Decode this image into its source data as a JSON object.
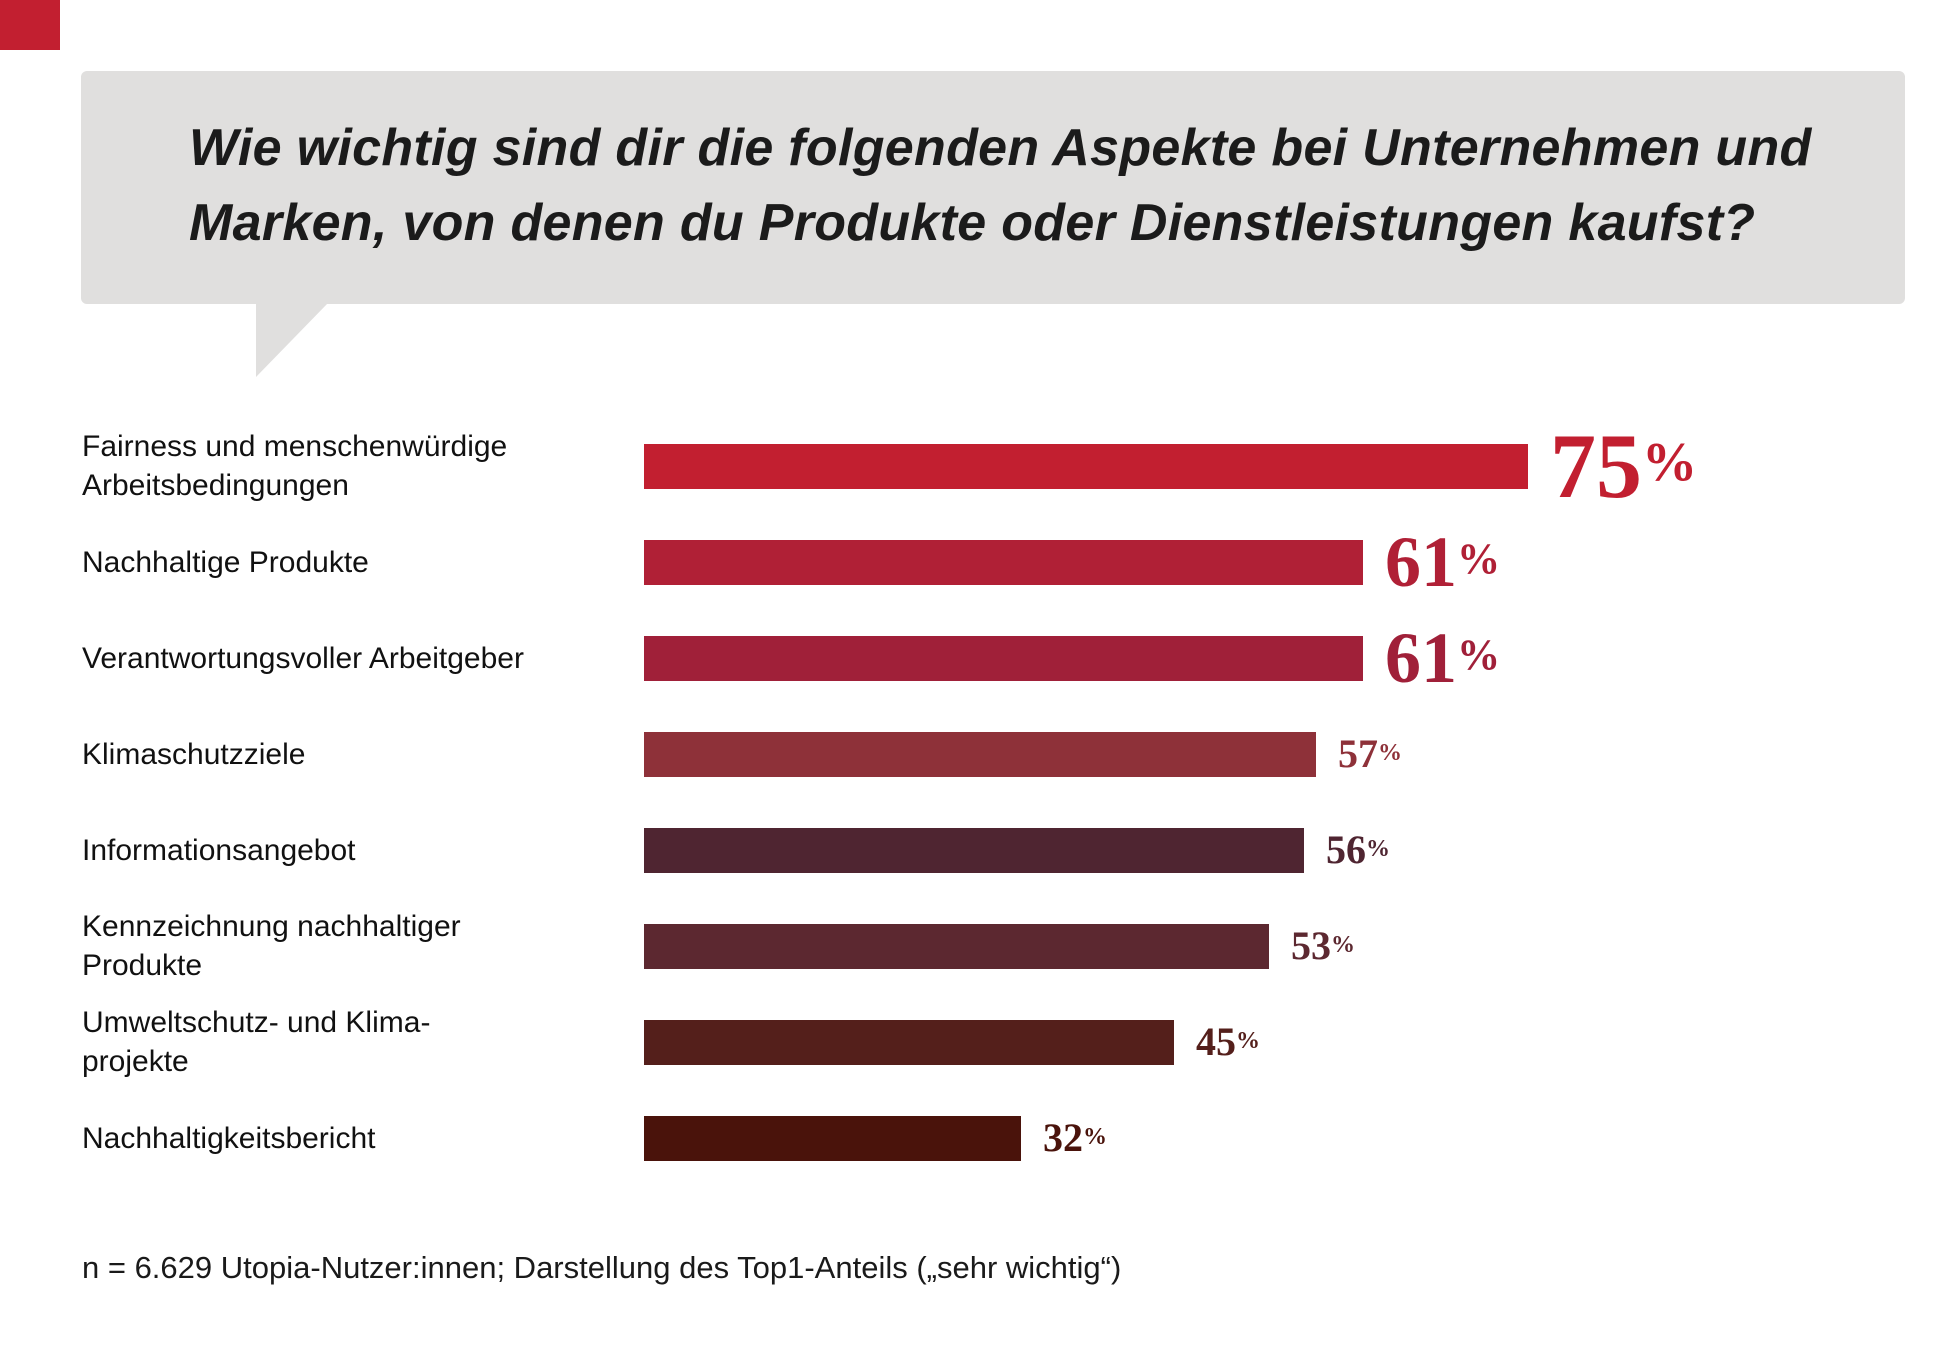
{
  "page": {
    "accent_color": "#c21f30",
    "background": "#ffffff"
  },
  "title": {
    "text": "Wie wichtig sind dir die folgenden Aspekte bei Unternehmen und\nMarken, von denen du Produkte oder Dienstleistungen kaufst?",
    "bubble_color": "#e0dfde"
  },
  "footnote": "n = 6.629 Utopia-Nutzer:innen; Darstellung des Top1-Anteils („sehr wichtig“)",
  "chart_data": {
    "type": "bar",
    "orientation": "horizontal",
    "title": "Wie wichtig sind dir die folgenden Aspekte bei Unternehmen und Marken, von denen du Produkte oder Dienstleistungen kaufst?",
    "categories": [
      "Fairness und menschenwürdige\nArbeitsbedingungen",
      "Nachhaltige Produkte",
      "Verantwortungsvoller Arbeitgeber",
      "Klimaschutzziele",
      "Informationsangebot",
      "Kennzeichnung nachhaltiger\nProdukte",
      "Umweltschutz- und Klima-\nprojekte",
      "Nachhaltigkeitsbericht"
    ],
    "values": [
      75,
      61,
      61,
      57,
      56,
      53,
      45,
      32
    ],
    "value_labels": [
      "75%",
      "61%",
      "61%",
      "57%",
      "56%",
      "53%",
      "45%",
      "32%"
    ],
    "unit": "%",
    "xlim": [
      0,
      75
    ],
    "grid": false,
    "legend": false,
    "bar_colors": [
      "#c21f30",
      "#b02036",
      "#a02039",
      "#8e3139",
      "#4f2531",
      "#5c2830",
      "#541f1b",
      "#4a130b"
    ],
    "note": "n = 6.629 Utopia-Nutzer:innen; Darstellung des Top1-Anteils („sehr wichtig“)"
  }
}
